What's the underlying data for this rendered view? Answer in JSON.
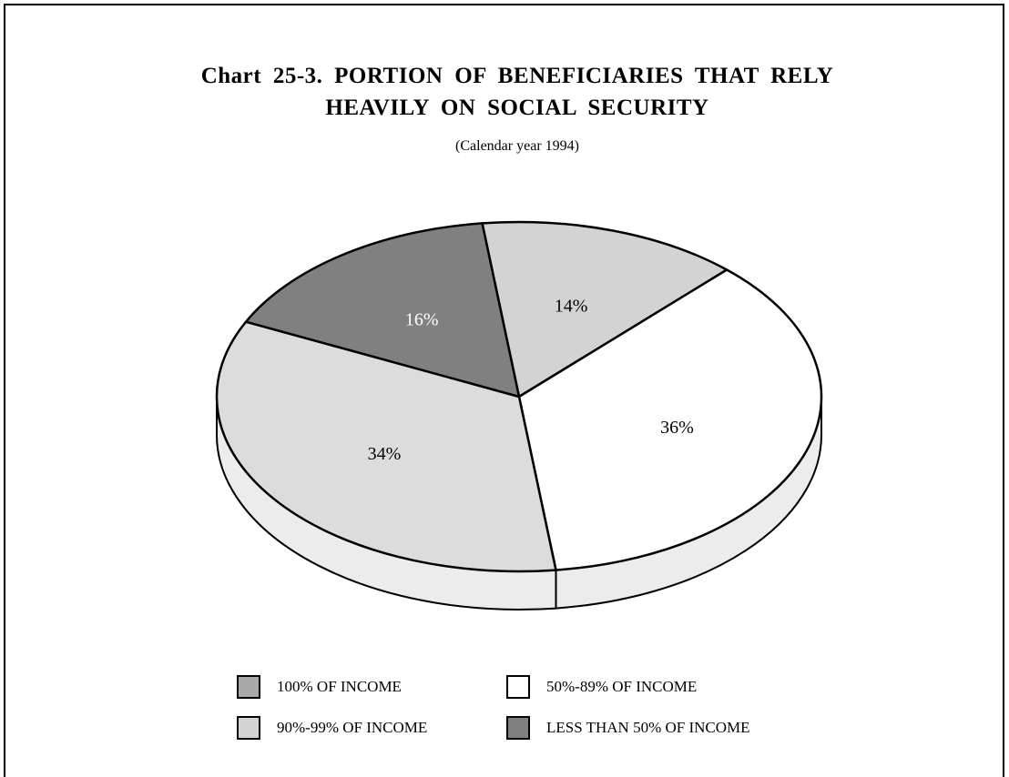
{
  "title_line1": "Chart 25-3. PORTION OF BENEFICIARIES THAT RELY",
  "title_line2": "HEAVILY ON SOCIAL SECURITY",
  "subtitle": "(Calendar year 1994)",
  "chart_data": {
    "type": "pie",
    "title": "Chart 25-3. PORTION OF BENEFICIARIES THAT RELY HEAVILY ON SOCIAL SECURITY",
    "subtitle": "(Calendar year 1994)",
    "three_d": true,
    "legend_position": "bottom",
    "slices": [
      {
        "label": "100% OF INCOME",
        "value": 14,
        "display": "14%",
        "color": "#d3d3d3"
      },
      {
        "label": "50%-89% OF INCOME",
        "value": 36,
        "display": "36%",
        "color": "#ffffff"
      },
      {
        "label": "90%-99% OF INCOME",
        "value": 34,
        "display": "34%",
        "color": "#dcdcdc"
      },
      {
        "label": "LESS THAN 50% OF INCOME",
        "value": 16,
        "display": "16%",
        "color": "#808080"
      }
    ],
    "legend": [
      {
        "label": "100% OF INCOME",
        "color": "#a9a9a9"
      },
      {
        "label": "50%-89% OF INCOME",
        "color": "#ffffff"
      },
      {
        "label": "90%-99% OF INCOME",
        "color": "#d3d3d3"
      },
      {
        "label": "LESS THAN 50% OF INCOME",
        "color": "#808080"
      }
    ]
  }
}
